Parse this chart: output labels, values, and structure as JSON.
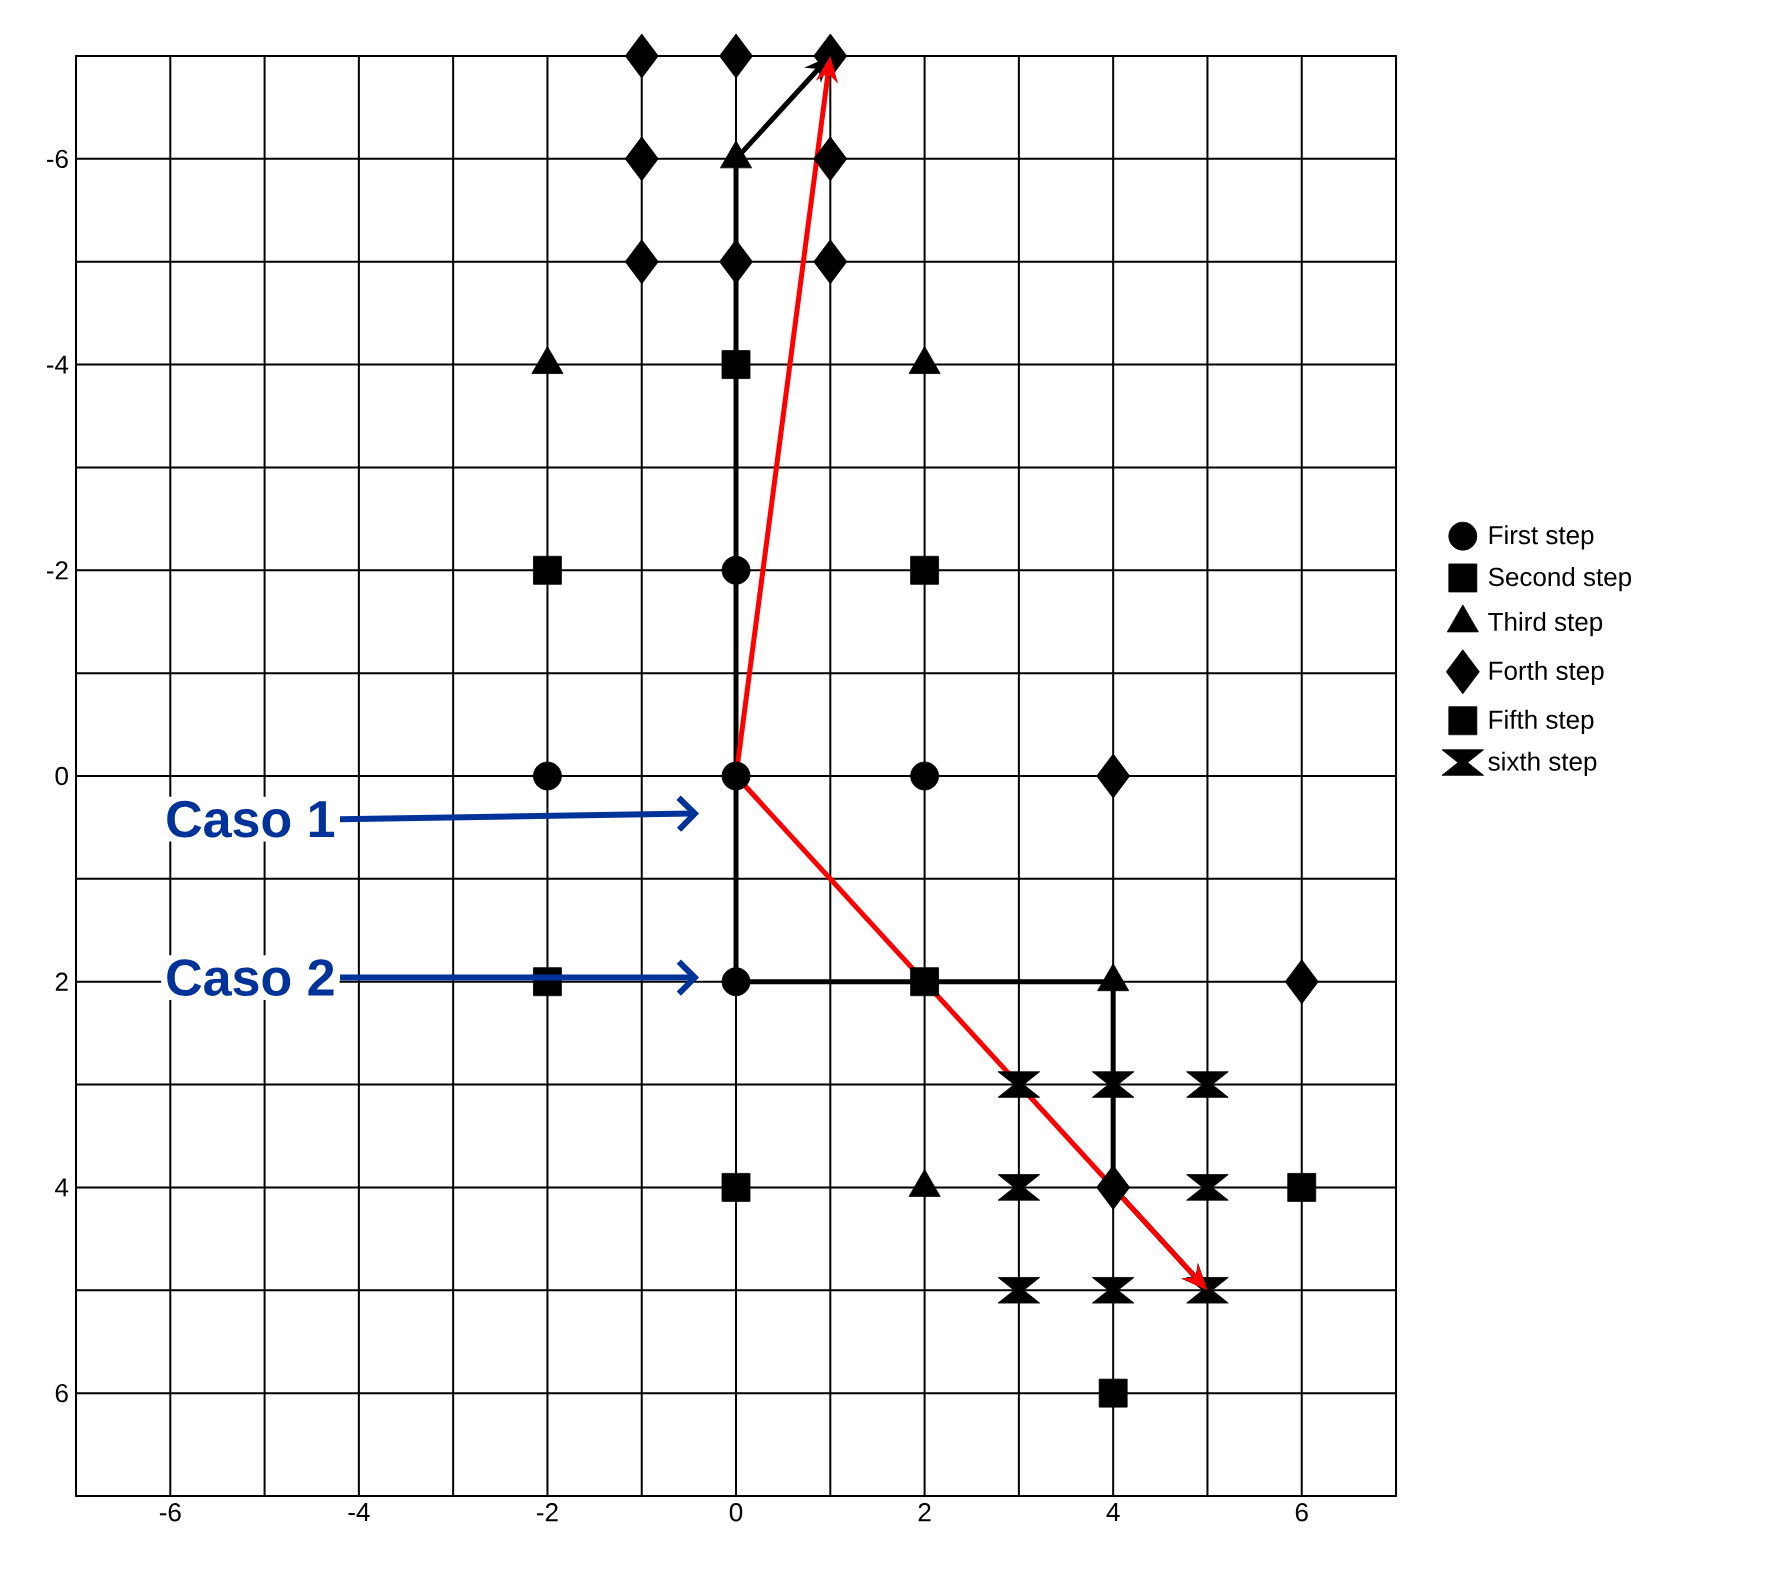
{
  "chart_data": {
    "type": "scatter",
    "xlim": [
      -7,
      7
    ],
    "ylim": [
      7,
      -7
    ],
    "xticks": [
      {
        "value": -7,
        "label": null
      },
      -6,
      {
        "value": -5,
        "label": null
      },
      -4,
      {
        "value": -3,
        "label": null
      },
      -2,
      {
        "value": -1,
        "label": null
      },
      0,
      {
        "value": 1,
        "label": null
      },
      2,
      {
        "value": 3,
        "label": null
      },
      4,
      {
        "value": 5,
        "label": null
      },
      6,
      {
        "value": 7,
        "label": null
      }
    ],
    "yticks": [
      {
        "value": -7,
        "label": null
      },
      -6,
      {
        "value": -5,
        "label": null
      },
      -4,
      {
        "value": -3,
        "label": null
      },
      -2,
      {
        "value": -1,
        "label": null
      },
      0,
      {
        "value": 1,
        "label": null
      },
      2,
      {
        "value": 3,
        "label": null
      },
      4,
      {
        "value": 5,
        "label": null
      },
      6,
      {
        "value": 7,
        "label": null
      }
    ],
    "grid": true,
    "legend": "right",
    "series": [
      {
        "name": "First step",
        "color": "#000000",
        "marker": "circle",
        "x": [
          0,
          -2,
          2,
          0,
          0
        ],
        "values": [
          0,
          0,
          0,
          -2,
          2
        ]
      },
      {
        "name": "Second step",
        "color": "#000000",
        "marker": "square",
        "x": [
          -2,
          2,
          0,
          -2,
          2,
          0
        ],
        "values": [
          -2,
          -2,
          -4,
          2,
          2,
          4
        ]
      },
      {
        "name": "Third step",
        "color": "#000000",
        "marker": "triangle",
        "x": [
          -2,
          2,
          0
        ],
        "values": [
          -4,
          -4,
          -6
        ]
      },
      {
        "name": "Forth step",
        "color": "#000000",
        "marker": "diamond",
        "x": [
          -1,
          0,
          1,
          -1,
          1,
          -1,
          0,
          1,
          4,
          6,
          4
        ],
        "values": [
          -7,
          -7,
          -7,
          -6,
          -6,
          -5,
          -5,
          -5,
          0,
          2,
          4
        ]
      },
      {
        "name": "Fifth step",
        "color": "#000000",
        "marker": "square",
        "x": [
          6,
          4
        ],
        "values": [
          4,
          6
        ]
      },
      {
        "name": "sixth step",
        "color": "#000000",
        "marker": "cross",
        "x": [
          3,
          4,
          5,
          3,
          5,
          3,
          4,
          5
        ],
        "values": [
          3,
          3,
          3,
          4,
          4,
          5,
          5,
          5
        ]
      },
      {
        "color": "#000000",
        "marker": "triangle",
        "x": [
          4,
          2
        ],
        "values": [
          2,
          4
        ]
      },
      {
        "type": "line",
        "color": "#000000",
        "marker": "none",
        "x": [
          0,
          0,
          1
        ],
        "values": [
          0,
          -6,
          -7
        ]
      },
      {
        "type": "line",
        "color": "#000000",
        "marker": "none",
        "x": [
          0,
          0,
          4,
          4,
          5
        ],
        "values": [
          0,
          2,
          2,
          4,
          5
        ]
      },
      {
        "type": "line",
        "color": "#ff0000",
        "marker": "none",
        "x": [
          0,
          1
        ],
        "values": [
          0,
          -7
        ]
      },
      {
        "type": "line",
        "color": "#ff0000",
        "marker": "none",
        "x": [
          0,
          5
        ],
        "values": [
          0,
          5
        ]
      }
    ],
    "annotations": [
      "Caso 1",
      "Caso 2"
    ]
  }
}
